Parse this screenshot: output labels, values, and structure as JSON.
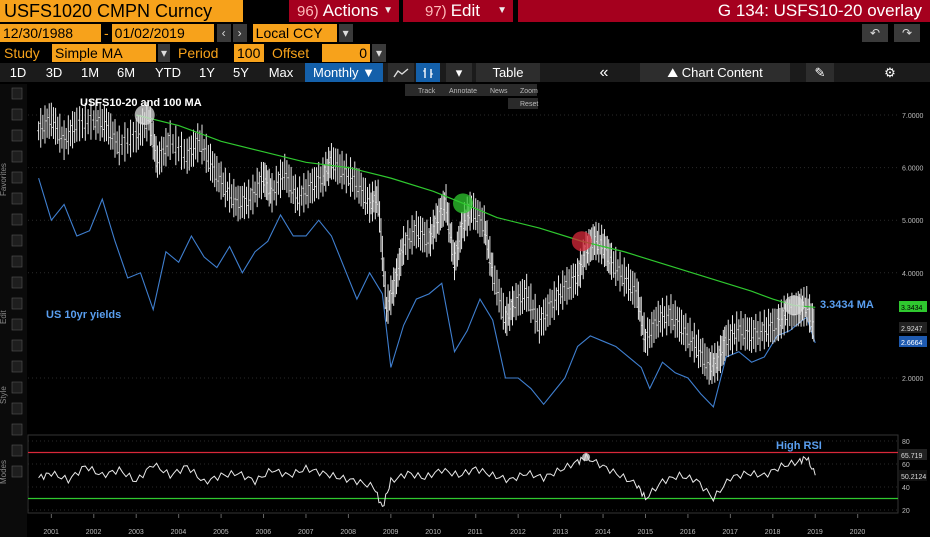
{
  "header": {
    "ticker": "USFS1020 CMPN Curncy",
    "actions_num": "96)",
    "actions_label": "Actions",
    "edit_num": "97)",
    "edit_label": "Edit",
    "title": "G 134: USFS10-20 overlay"
  },
  "range": {
    "start_date": "12/30/1988",
    "end_date": "01/02/2019",
    "currency": "Local CCY"
  },
  "study": {
    "label": "Study",
    "value": "Simple MA",
    "period_label": "Period",
    "period_value": "100",
    "offset_label": "Offset",
    "offset_value": "0"
  },
  "toolbar": {
    "periods": [
      "1D",
      "3D",
      "1M",
      "6M",
      "YTD",
      "1Y",
      "5Y",
      "Max"
    ],
    "frequency": "Monthly",
    "table_label": "Table",
    "chart_content_label": "Chart Content"
  },
  "mini_toolbar": {
    "track": "Track",
    "annotate": "Annotate",
    "news": "News",
    "zoom": "Zoom",
    "reset": "Reset"
  },
  "side_labels": [
    "Favorites",
    "Edit",
    "Style",
    "Modes"
  ],
  "colors": {
    "price": "#e8e8e8",
    "ma": "#2fc82f",
    "yield": "#3f7fd0",
    "rsi": "#e8e8e8",
    "rsi_upper": "#d8283a",
    "rsi_lower": "#2fc82f",
    "accent": "#f7a21b",
    "header_red": "#a5001e"
  },
  "chart_data": [
    {
      "type": "line",
      "annotations": {
        "price_label": "USFS10-20 and 100 MA",
        "yield_label": "US 10yr yields",
        "ma_label": "3.3434 MA"
      },
      "x_ticks": [
        "2001",
        "2002",
        "2003",
        "2004",
        "2005",
        "2006",
        "2007",
        "2008",
        "2009",
        "2010",
        "2011",
        "2012",
        "2013",
        "2014",
        "2015",
        "2016",
        "2017",
        "2018",
        "2019",
        "2020"
      ],
      "y_ticks": [
        "7.0000",
        "6.0000",
        "5.0000",
        "4.0000",
        "2.0000"
      ],
      "last_value_labels": [
        {
          "series": "ma",
          "text": "3.3434",
          "value": 3.3434
        },
        {
          "series": "price",
          "text": "2.9247",
          "value": 2.9247
        },
        {
          "series": "yield",
          "text": "2.6664",
          "value": 2.6664
        }
      ],
      "series": [
        {
          "key": "price",
          "points": [
            [
              2000.7,
              6.7
            ],
            [
              2001.0,
              6.9
            ],
            [
              2001.3,
              6.5
            ],
            [
              2001.6,
              6.8
            ],
            [
              2002.0,
              6.9
            ],
            [
              2002.3,
              6.8
            ],
            [
              2002.6,
              6.4
            ],
            [
              2003.0,
              6.6
            ],
            [
              2003.3,
              6.9
            ],
            [
              2003.5,
              6.1
            ],
            [
              2003.8,
              6.5
            ],
            [
              2004.2,
              6.2
            ],
            [
              2004.5,
              6.5
            ],
            [
              2004.8,
              6.0
            ],
            [
              2005.1,
              5.6
            ],
            [
              2005.4,
              5.3
            ],
            [
              2005.7,
              5.4
            ],
            [
              2006.0,
              5.8
            ],
            [
              2006.2,
              5.5
            ],
            [
              2006.5,
              5.9
            ],
            [
              2006.8,
              5.4
            ],
            [
              2007.1,
              5.6
            ],
            [
              2007.4,
              5.8
            ],
            [
              2007.6,
              6.1
            ],
            [
              2007.9,
              5.9
            ],
            [
              2008.2,
              5.7
            ],
            [
              2008.5,
              5.3
            ],
            [
              2008.7,
              5.4
            ],
            [
              2008.9,
              3.3
            ],
            [
              2009.1,
              3.8
            ],
            [
              2009.3,
              4.5
            ],
            [
              2009.6,
              4.8
            ],
            [
              2009.9,
              4.6
            ],
            [
              2010.1,
              5.0
            ],
            [
              2010.3,
              5.3
            ],
            [
              2010.5,
              4.2
            ],
            [
              2010.7,
              4.9
            ],
            [
              2010.9,
              5.2
            ],
            [
              2011.2,
              4.9
            ],
            [
              2011.4,
              4.0
            ],
            [
              2011.7,
              3.1
            ],
            [
              2011.9,
              3.4
            ],
            [
              2012.2,
              3.6
            ],
            [
              2012.5,
              3.0
            ],
            [
              2012.8,
              3.4
            ],
            [
              2013.1,
              3.7
            ],
            [
              2013.4,
              3.9
            ],
            [
              2013.6,
              4.4
            ],
            [
              2013.8,
              4.6
            ],
            [
              2014.0,
              4.5
            ],
            [
              2014.2,
              4.2
            ],
            [
              2014.5,
              3.9
            ],
            [
              2014.8,
              3.6
            ],
            [
              2015.0,
              2.7
            ],
            [
              2015.3,
              3.1
            ],
            [
              2015.6,
              3.2
            ],
            [
              2015.9,
              2.9
            ],
            [
              2016.2,
              2.6
            ],
            [
              2016.5,
              2.2
            ],
            [
              2016.7,
              2.3
            ],
            [
              2016.9,
              2.7
            ],
            [
              2017.2,
              2.9
            ],
            [
              2017.5,
              2.8
            ],
            [
              2017.8,
              2.9
            ],
            [
              2018.1,
              3.0
            ],
            [
              2018.3,
              3.2
            ],
            [
              2018.6,
              3.3
            ],
            [
              2018.8,
              3.35
            ],
            [
              2019.0,
              2.92
            ]
          ]
        },
        {
          "key": "ma",
          "points": [
            [
              2003.0,
              7.0
            ],
            [
              2004.0,
              6.8
            ],
            [
              2005.0,
              6.5
            ],
            [
              2006.0,
              6.3
            ],
            [
              2007.0,
              6.1
            ],
            [
              2008.0,
              6.0
            ],
            [
              2009.0,
              5.8
            ],
            [
              2010.0,
              5.55
            ],
            [
              2010.7,
              5.32
            ],
            [
              2011.5,
              5.05
            ],
            [
              2012.5,
              4.85
            ],
            [
              2013.5,
              4.6
            ],
            [
              2014.5,
              4.4
            ],
            [
              2015.5,
              4.15
            ],
            [
              2016.5,
              3.9
            ],
            [
              2017.5,
              3.65
            ],
            [
              2018.0,
              3.5
            ],
            [
              2018.5,
              3.38
            ],
            [
              2019.0,
              3.3434
            ]
          ]
        },
        {
          "key": "yield",
          "points": [
            [
              2000.7,
              5.8
            ],
            [
              2001.0,
              5.0
            ],
            [
              2001.3,
              5.3
            ],
            [
              2001.6,
              4.7
            ],
            [
              2001.9,
              4.8
            ],
            [
              2002.2,
              5.4
            ],
            [
              2002.5,
              4.6
            ],
            [
              2002.8,
              3.9
            ],
            [
              2003.1,
              4.0
            ],
            [
              2003.4,
              3.3
            ],
            [
              2003.7,
              4.4
            ],
            [
              2004.0,
              4.2
            ],
            [
              2004.3,
              4.7
            ],
            [
              2004.6,
              4.3
            ],
            [
              2004.9,
              4.1
            ],
            [
              2005.2,
              4.5
            ],
            [
              2005.5,
              4.0
            ],
            [
              2005.8,
              4.4
            ],
            [
              2006.1,
              4.6
            ],
            [
              2006.4,
              5.1
            ],
            [
              2006.7,
              4.7
            ],
            [
              2007.0,
              4.7
            ],
            [
              2007.3,
              5.0
            ],
            [
              2007.6,
              4.7
            ],
            [
              2007.9,
              4.1
            ],
            [
              2008.2,
              3.5
            ],
            [
              2008.5,
              4.0
            ],
            [
              2008.8,
              3.6
            ],
            [
              2009.0,
              2.2
            ],
            [
              2009.3,
              3.0
            ],
            [
              2009.6,
              3.5
            ],
            [
              2009.9,
              3.6
            ],
            [
              2010.2,
              3.8
            ],
            [
              2010.5,
              2.5
            ],
            [
              2010.8,
              2.9
            ],
            [
              2011.1,
              3.5
            ],
            [
              2011.4,
              3.1
            ],
            [
              2011.7,
              2.0
            ],
            [
              2012.0,
              2.0
            ],
            [
              2012.3,
              1.8
            ],
            [
              2012.6,
              1.5
            ],
            [
              2012.9,
              1.8
            ],
            [
              2013.1,
              2.0
            ],
            [
              2013.4,
              2.6
            ],
            [
              2013.7,
              2.8
            ],
            [
              2014.0,
              2.7
            ],
            [
              2014.3,
              2.6
            ],
            [
              2014.6,
              2.4
            ],
            [
              2014.9,
              2.2
            ],
            [
              2015.1,
              1.8
            ],
            [
              2015.4,
              2.3
            ],
            [
              2015.7,
              2.1
            ],
            [
              2016.0,
              2.0
            ],
            [
              2016.3,
              1.7
            ],
            [
              2016.6,
              1.45
            ],
            [
              2016.9,
              2.4
            ],
            [
              2017.2,
              2.5
            ],
            [
              2017.5,
              2.3
            ],
            [
              2017.8,
              2.4
            ],
            [
              2018.1,
              2.8
            ],
            [
              2018.4,
              2.9
            ],
            [
              2018.7,
              3.1
            ],
            [
              2018.8,
              3.15
            ],
            [
              2019.0,
              2.6664
            ]
          ]
        }
      ],
      "markers": [
        {
          "x": 2003.2,
          "y": 7.0,
          "color": "#dddddd"
        },
        {
          "x": 2010.7,
          "y": 5.32,
          "color": "#2fc82f"
        },
        {
          "x": 2013.5,
          "y": 4.6,
          "color": "#d8283a"
        },
        {
          "x": 2018.5,
          "y": 3.38,
          "color": "#dddddd"
        }
      ]
    },
    {
      "type": "line",
      "title": "",
      "annotation": "High RSI",
      "y_ticks": [
        "80",
        "60",
        "40",
        "20"
      ],
      "levels": [
        70,
        30
      ],
      "last_value_labels": [
        {
          "text": "65.719",
          "value": 65.719
        },
        {
          "text": "50.2124",
          "value": 50.2124
        }
      ],
      "series": [
        {
          "key": "rsi",
          "points": [
            [
              2000.7,
              48
            ],
            [
              2001.0,
              52
            ],
            [
              2001.4,
              46
            ],
            [
              2001.8,
              58
            ],
            [
              2002.2,
              50
            ],
            [
              2002.6,
              55
            ],
            [
              2003.0,
              45
            ],
            [
              2003.4,
              60
            ],
            [
              2003.8,
              50
            ],
            [
              2004.2,
              58
            ],
            [
              2004.6,
              44
            ],
            [
              2005.0,
              50
            ],
            [
              2005.4,
              52
            ],
            [
              2005.8,
              45
            ],
            [
              2006.2,
              55
            ],
            [
              2006.6,
              50
            ],
            [
              2007.0,
              56
            ],
            [
              2007.4,
              52
            ],
            [
              2007.8,
              48
            ],
            [
              2008.2,
              45
            ],
            [
              2008.6,
              40
            ],
            [
              2008.8,
              22
            ],
            [
              2009.0,
              45
            ],
            [
              2009.4,
              52
            ],
            [
              2009.8,
              48
            ],
            [
              2010.2,
              55
            ],
            [
              2010.6,
              50
            ],
            [
              2011.0,
              56
            ],
            [
              2011.4,
              50
            ],
            [
              2011.8,
              46
            ],
            [
              2012.2,
              52
            ],
            [
              2012.6,
              48
            ],
            [
              2013.0,
              55
            ],
            [
              2013.4,
              62
            ],
            [
              2013.6,
              66
            ],
            [
              2014.0,
              58
            ],
            [
              2014.4,
              50
            ],
            [
              2014.8,
              42
            ],
            [
              2015.0,
              30
            ],
            [
              2015.4,
              45
            ],
            [
              2015.8,
              50
            ],
            [
              2016.2,
              46
            ],
            [
              2016.6,
              30
            ],
            [
              2017.0,
              48
            ],
            [
              2017.4,
              52
            ],
            [
              2017.8,
              50
            ],
            [
              2018.2,
              58
            ],
            [
              2018.6,
              62
            ],
            [
              2018.8,
              65.7
            ],
            [
              2019.0,
              50.2
            ]
          ]
        }
      ],
      "markers": [
        {
          "x": 2013.6,
          "y": 66,
          "color": "#dddddd"
        }
      ]
    }
  ]
}
